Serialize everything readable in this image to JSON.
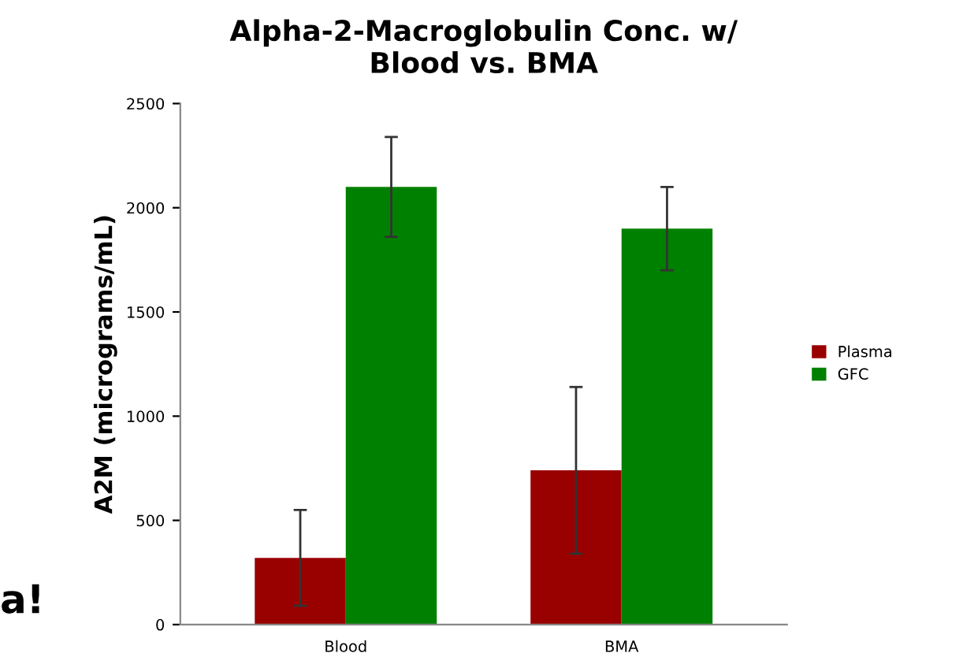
{
  "chart_data": {
    "type": "bar",
    "title": "Alpha-2-Macroglobulin Conc. w/\nBlood vs. BMA",
    "ylabel": "A2M (micrograms/mL)",
    "categories": [
      "Blood",
      "BMA"
    ],
    "series": [
      {
        "name": "Plasma",
        "color": "#990000",
        "values": [
          320,
          740
        ],
        "errors": [
          230,
          400
        ]
      },
      {
        "name": "GFC",
        "color": "#008000",
        "values": [
          2100,
          1900
        ],
        "errors": [
          240,
          200
        ]
      }
    ],
    "ylim": [
      0,
      2500
    ],
    "yticks": [
      0,
      500,
      1000,
      1500,
      2000,
      2500
    ],
    "grid": false,
    "legend": "right",
    "annotations": [
      "a!"
    ]
  }
}
